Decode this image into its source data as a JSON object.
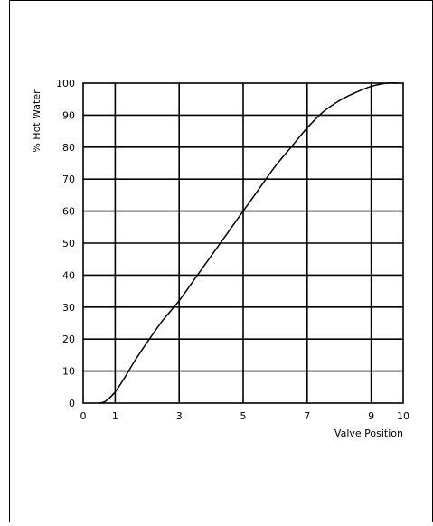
{
  "chart_data": {
    "type": "line",
    "title": "",
    "xlabel": "Valve Position",
    "ylabel": "% Hot Water",
    "xlim": [
      0,
      10
    ],
    "ylim": [
      0,
      100
    ],
    "x_ticks": [
      0,
      1,
      3,
      5,
      7,
      9,
      10
    ],
    "x_tick_labels": [
      "0",
      "1",
      "3",
      "5",
      "7",
      "9",
      "10"
    ],
    "y_ticks": [
      0,
      10,
      20,
      30,
      40,
      50,
      60,
      70,
      80,
      90,
      100
    ],
    "y_tick_labels": [
      "0",
      "10",
      "20",
      "30",
      "40",
      "50",
      "60",
      "70",
      "80",
      "90",
      "100"
    ],
    "grid": true,
    "legend": "none",
    "series": [
      {
        "x": [
          0.5,
          0.7,
          1.0,
          1.3,
          1.6,
          2.0,
          2.5,
          3.0,
          3.5,
          4.0,
          4.5,
          5.0,
          5.5,
          6.0,
          6.5,
          7.0,
          7.5,
          8.0,
          8.5,
          9.0,
          9.5,
          9.85
        ],
        "y": [
          0,
          0.6,
          3.5,
          8,
          13,
          19,
          26,
          32,
          39,
          46,
          53,
          60,
          67,
          74,
          80,
          86,
          91,
          94.5,
          97,
          99,
          100,
          100
        ],
        "color": "#000000"
      }
    ]
  }
}
